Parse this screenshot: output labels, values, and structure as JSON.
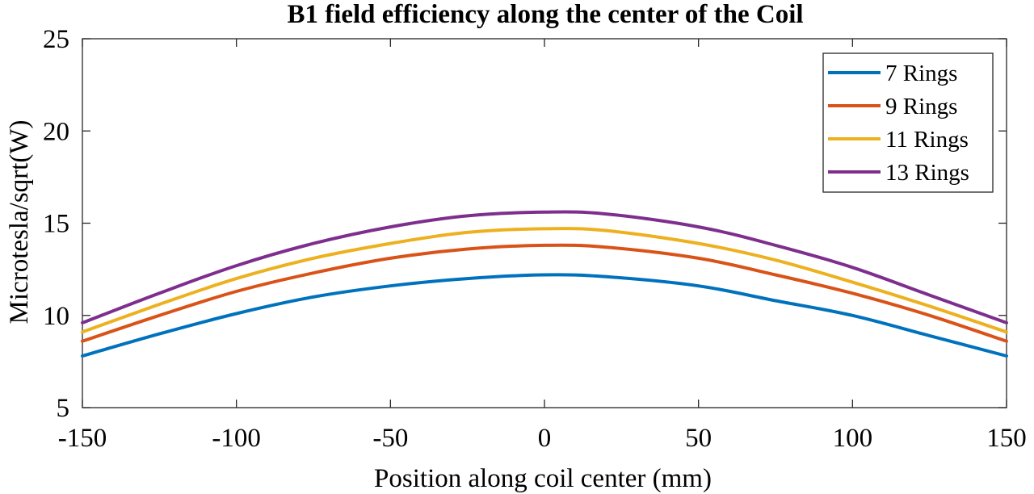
{
  "chart_data": {
    "type": "line",
    "title": "B1 field efficiency along the center of the Coil",
    "xlabel": "Position along coil center (mm)",
    "ylabel": "Microtesla/sqrt(W)",
    "xlim": [
      -150,
      150
    ],
    "ylim": [
      5,
      25
    ],
    "xticks": [
      -150,
      -100,
      -50,
      0,
      50,
      100,
      150
    ],
    "yticks": [
      5,
      10,
      15,
      20,
      25
    ],
    "xtick_labels": [
      "-150",
      "-100",
      "-50",
      "0",
      "50",
      "100",
      "150"
    ],
    "ytick_labels": [
      "5",
      "10",
      "15",
      "20",
      "25"
    ],
    "grid": false,
    "legend_position": "top-right",
    "x": [
      -150,
      -125,
      -100,
      -75,
      -50,
      -25,
      0,
      20,
      50,
      75,
      100,
      125,
      150
    ],
    "series": [
      {
        "name": "7 Rings",
        "color": "#0072BD",
        "values": [
          7.8,
          9.0,
          10.1,
          11.0,
          11.6,
          12.0,
          12.2,
          12.1,
          11.6,
          10.8,
          10.0,
          8.9,
          7.8
        ]
      },
      {
        "name": "9 Rings",
        "color": "#D95319",
        "values": [
          8.6,
          10.0,
          11.3,
          12.3,
          13.1,
          13.6,
          13.8,
          13.7,
          13.1,
          12.2,
          11.2,
          10.0,
          8.6
        ]
      },
      {
        "name": "11 Rings",
        "color": "#EDB120",
        "values": [
          9.1,
          10.6,
          12.0,
          13.1,
          13.9,
          14.5,
          14.7,
          14.6,
          13.9,
          13.0,
          11.8,
          10.5,
          9.1
        ]
      },
      {
        "name": "13 Rings",
        "color": "#7E2F8E",
        "values": [
          9.6,
          11.2,
          12.7,
          13.9,
          14.8,
          15.4,
          15.6,
          15.5,
          14.8,
          13.8,
          12.6,
          11.1,
          9.6
        ]
      }
    ]
  }
}
